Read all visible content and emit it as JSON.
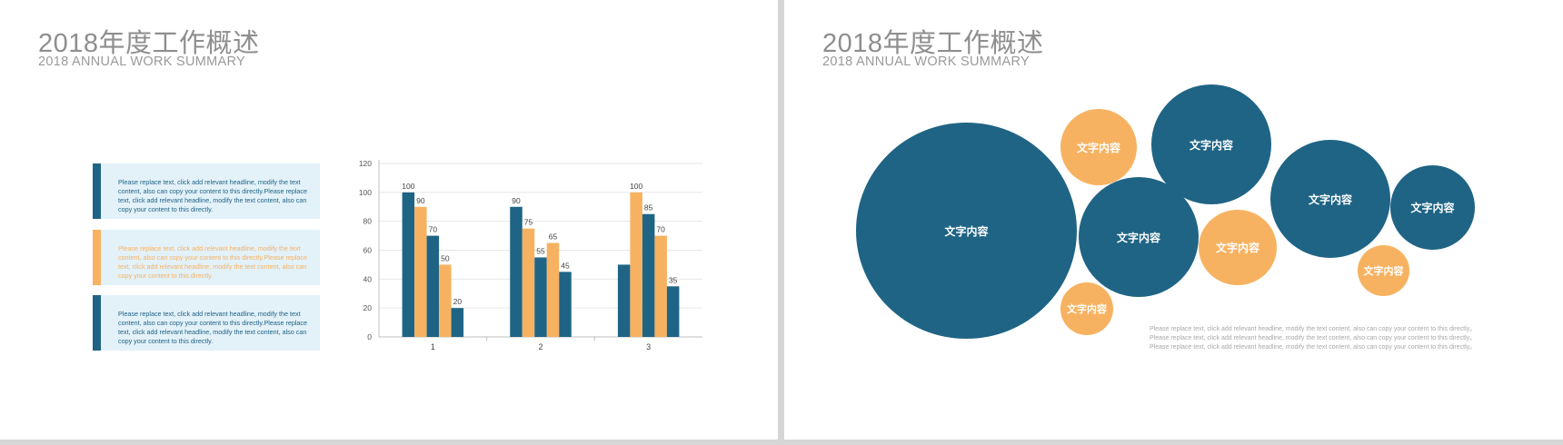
{
  "colors": {
    "navy": "#1f6485",
    "orange": "#f7b261",
    "box_bg": "#e3f1f9",
    "title_gray": "#8e8e8e"
  },
  "left_slide": {
    "title_cn": "2018年度工作概述",
    "title_en": "2018 ANNUAL  WORK SUMMARY",
    "text_boxes": [
      {
        "text": "Please replace text, click add relevant headline,  modify the text content, also can copy your content to this directly.Please replace text, click add relevant headline, modify the text content, also can copy your content to this directly.",
        "accent": "navy"
      },
      {
        "text": "Please replace text, click add relevant headline,  modify the text content, also can copy your content to this directly.Please replace text, click add relevant headline, modify the text content, also can copy your content to this directly.",
        "accent": "orange"
      },
      {
        "text": "Please replace text, click add relevant headline,  modify the text content, also can copy your content to this directly.Please replace text, click add relevant headline, modify the text content, also can copy your content to this directly.",
        "accent": "navy"
      }
    ]
  },
  "chart_data": {
    "type": "bar",
    "categories": [
      "1",
      "2",
      "3"
    ],
    "series": [
      {
        "values": [
          100,
          90,
          50
        ],
        "color": "#1f6485"
      },
      {
        "values": [
          90,
          75,
          100
        ],
        "color": "#f7b261"
      },
      {
        "values": [
          70,
          55,
          85
        ],
        "color": "#1f6485"
      },
      {
        "values": [
          50,
          65,
          70
        ],
        "color": "#f7b261"
      },
      {
        "values": [
          20,
          45,
          35
        ],
        "color": "#1f6485"
      }
    ],
    "data_labels": [
      [
        "100",
        "90",
        "70",
        "50",
        "20"
      ],
      [
        "90",
        "75",
        "55",
        "65",
        "45"
      ],
      [
        "",
        "100",
        "85",
        "70",
        "35"
      ]
    ],
    "ylim": [
      0,
      120
    ],
    "yticks": [
      0,
      20,
      40,
      60,
      80,
      100,
      120
    ],
    "grid": true,
    "legend": "none"
  },
  "right_slide": {
    "title_cn": "2018年度工作概述",
    "title_en": "2018 ANNUAL  WORK SUMMARY",
    "bubbles": [
      {
        "label": "文字内容",
        "color": "navy"
      },
      {
        "label": "文字内容",
        "color": "orange"
      },
      {
        "label": "文字内容",
        "color": "navy"
      },
      {
        "label": "文字内容",
        "color": "navy"
      },
      {
        "label": "文字内容",
        "color": "orange"
      },
      {
        "label": "文字内容",
        "color": "navy"
      },
      {
        "label": "文字内容",
        "color": "navy"
      },
      {
        "label": "文字内容",
        "color": "orange"
      },
      {
        "label": "文字内容",
        "color": "orange"
      }
    ],
    "note_lines": [
      "Please replace text, click add relevant headline,  modify the text content, also can copy your content to this directly。",
      "Please replace text, click add relevant headline,  modify the text content, also can copy your content to this directly。",
      "Please replace text, click add relevant headline,  modify the text content, also can copy your content to this directly。"
    ]
  }
}
